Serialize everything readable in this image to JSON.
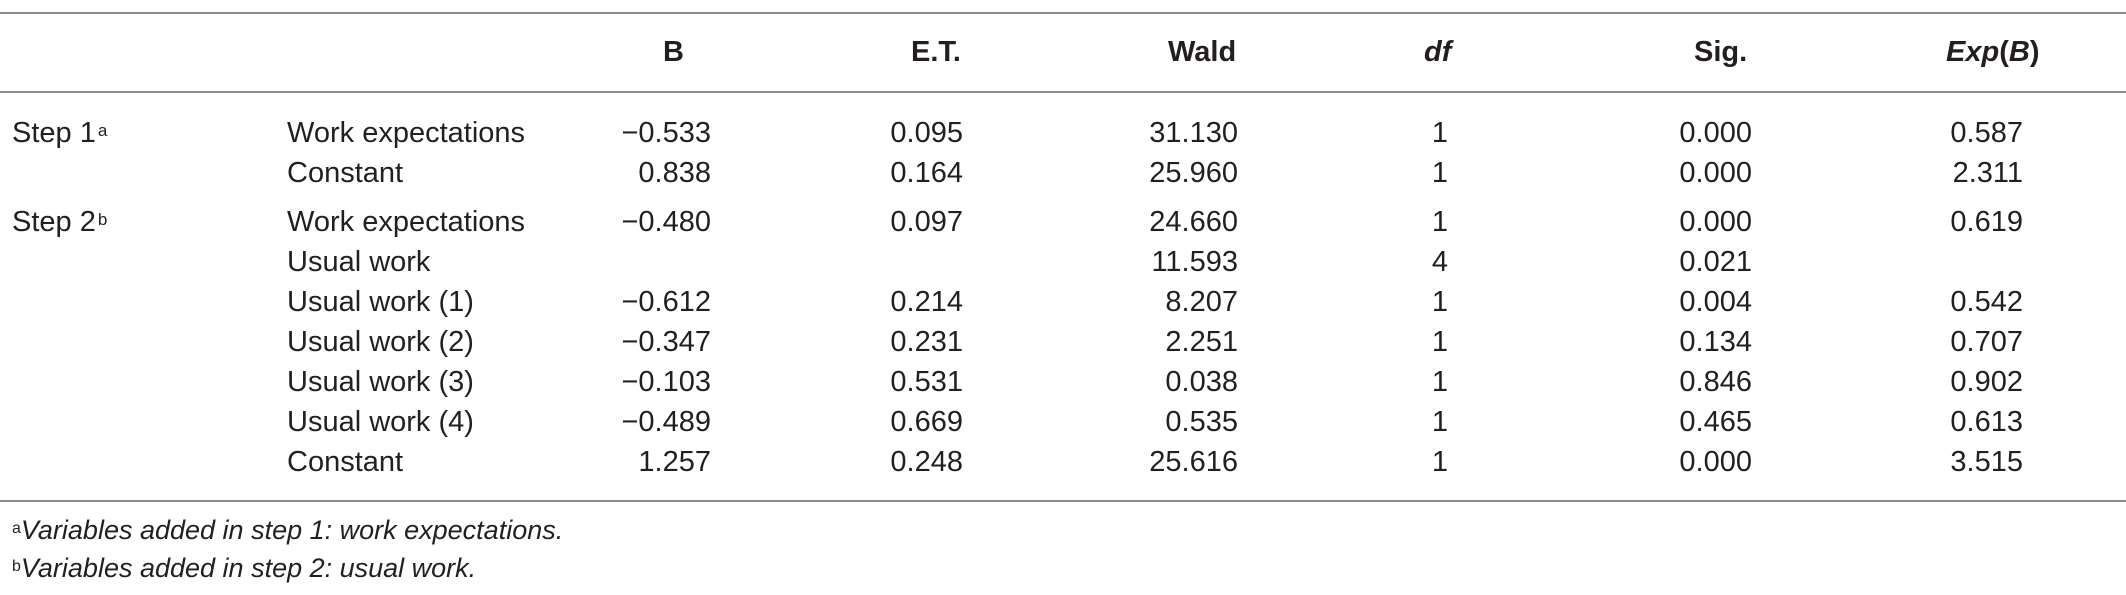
{
  "header": {
    "col_b": "B",
    "col_et": "E.T.",
    "col_wald": "Wald",
    "col_df": "df",
    "col_sig": "Sig.",
    "col_exp_prefix": "Exp",
    "col_exp_arg": "(B)"
  },
  "rows": [
    {
      "step": "Step 1",
      "step_sup": "a",
      "variable": "Work expectations",
      "b": "−0.533",
      "et": "0.095",
      "wald": "31.130",
      "df": "1",
      "sig": "0.000",
      "exp": "0.587"
    },
    {
      "step": "",
      "step_sup": "",
      "variable": "Constant",
      "b": "0.838",
      "et": "0.164",
      "wald": "25.960",
      "df": "1",
      "sig": "0.000",
      "exp": "2.311"
    },
    {
      "step": "Step 2",
      "step_sup": "b",
      "variable": "Work expectations",
      "b": "−0.480",
      "et": "0.097",
      "wald": "24.660",
      "df": "1",
      "sig": "0.000",
      "exp": "0.619"
    },
    {
      "step": "",
      "step_sup": "",
      "variable": "Usual work",
      "b": "",
      "et": "",
      "wald": "11.593",
      "df": "4",
      "sig": "0.021",
      "exp": ""
    },
    {
      "step": "",
      "step_sup": "",
      "variable": "Usual work (1)",
      "b": "−0.612",
      "et": "0.214",
      "wald": "8.207",
      "df": "1",
      "sig": "0.004",
      "exp": "0.542"
    },
    {
      "step": "",
      "step_sup": "",
      "variable": "Usual work (2)",
      "b": "−0.347",
      "et": "0.231",
      "wald": "2.251",
      "df": "1",
      "sig": "0.134",
      "exp": "0.707"
    },
    {
      "step": "",
      "step_sup": "",
      "variable": "Usual work (3)",
      "b": "−0.103",
      "et": "0.531",
      "wald": "0.038",
      "df": "1",
      "sig": "0.846",
      "exp": "0.902"
    },
    {
      "step": "",
      "step_sup": "",
      "variable": "Usual work (4)",
      "b": "−0.489",
      "et": "0.669",
      "wald": "0.535",
      "df": "1",
      "sig": "0.465",
      "exp": "0.613"
    },
    {
      "step": "",
      "step_sup": "",
      "variable": "Constant",
      "b": "1.257",
      "et": "0.248",
      "wald": "25.616",
      "df": "1",
      "sig": "0.000",
      "exp": "3.515"
    }
  ],
  "footnotes": [
    {
      "mark": "a",
      "text": "Variables added in step 1: work expectations."
    },
    {
      "mark": "b",
      "text": "Variables added in step 2: usual work."
    }
  ]
}
